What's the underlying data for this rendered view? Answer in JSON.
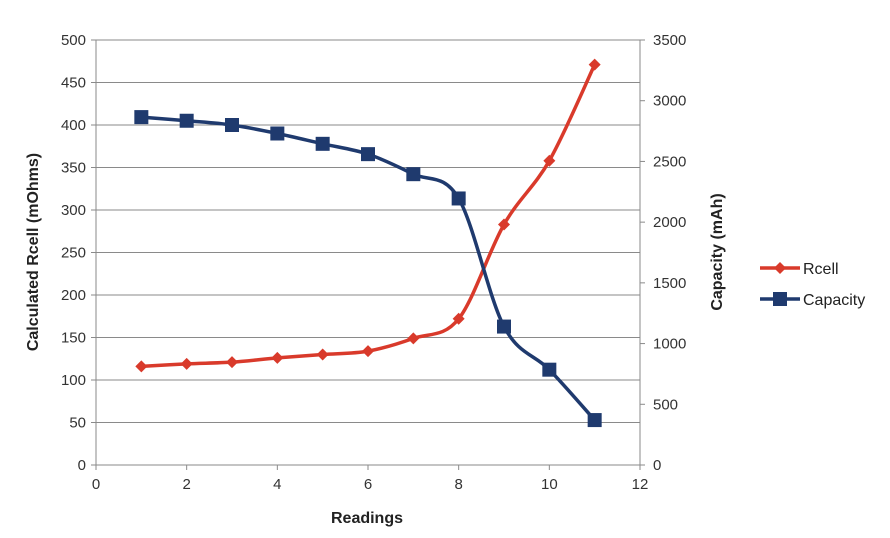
{
  "chart_data": {
    "type": "line",
    "xlabel": "Readings",
    "ylabel": "Calculated Rcell (mOhms)",
    "y2label": "Capacity (mAh)",
    "xlim": [
      0,
      12
    ],
    "ylim": [
      0,
      500
    ],
    "y2lim": [
      0,
      3500
    ],
    "xticks": [
      "0",
      "2",
      "4",
      "6",
      "8",
      "10",
      "12"
    ],
    "yticks": [
      "0",
      "50",
      "100",
      "150",
      "200",
      "250",
      "300",
      "350",
      "400",
      "450",
      "500"
    ],
    "y2ticks": [
      "0",
      "500",
      "1000",
      "1500",
      "2000",
      "2500",
      "3000",
      "3500"
    ],
    "grid": "horizontal",
    "legend_position": "right",
    "series": [
      {
        "name": "Rcell",
        "axis": "left",
        "marker": "diamond",
        "color": "#d93a2b",
        "x": [
          1,
          2,
          3,
          4,
          5,
          6,
          7,
          8,
          9,
          10,
          11
        ],
        "y": [
          116,
          119,
          121,
          126,
          130,
          134,
          149,
          172,
          283,
          358,
          471
        ]
      },
      {
        "name": "Capacity",
        "axis": "right",
        "marker": "square",
        "color": "#1f3a6e",
        "x": [
          1,
          2,
          3,
          4,
          5,
          6,
          7,
          8,
          9,
          10,
          11
        ],
        "y": [
          2865,
          2835,
          2800,
          2730,
          2645,
          2560,
          2395,
          2195,
          1140,
          785,
          370
        ]
      }
    ]
  }
}
